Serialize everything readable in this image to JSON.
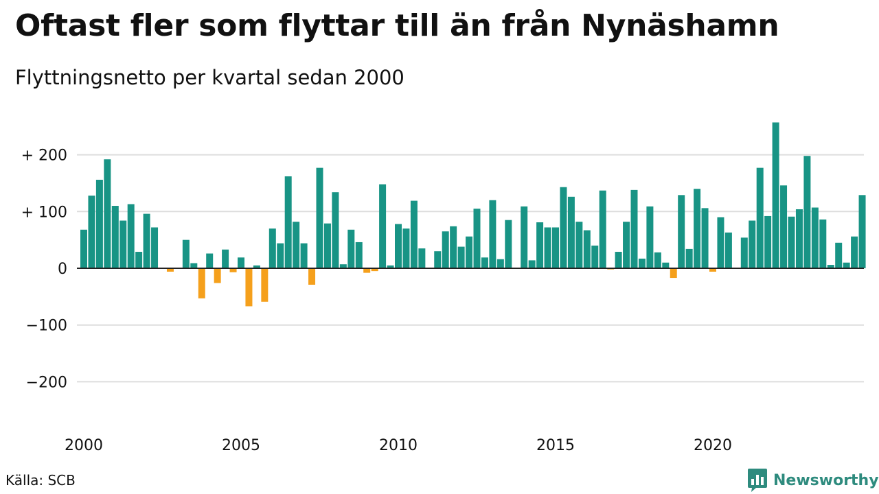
{
  "title": "Oftast fler som flyttar till än från Nynäshamn",
  "subtitle": "Flyttningsnetto per kvartal sedan 2000",
  "source": "Källa: SCB",
  "brand": {
    "label": "Newsworthy",
    "icon": "bar-chart-bubble-icon"
  },
  "colors": {
    "positive": "#189485",
    "negative": "#f5a01c",
    "grid": "#dddddd",
    "axis": "#222222",
    "brand": "#2e8b7e"
  },
  "chart_data": {
    "type": "bar",
    "title": "Oftast fler som flyttar till än från Nynäshamn",
    "subtitle": "Flyttningsnetto per kvartal sedan 2000",
    "xlabel": "",
    "ylabel": "",
    "start_year": 2000,
    "periods_per_year": 4,
    "x_tick_labels": [
      "2000",
      "2005",
      "2010",
      "2015",
      "2020"
    ],
    "y_ticks": [
      -200,
      -100,
      0,
      100,
      200
    ],
    "y_tick_labels": [
      "−200",
      "−100",
      "0",
      "+ 100",
      "+ 200"
    ],
    "ylim": [
      -265,
      265
    ],
    "grid": true,
    "series": [
      {
        "values": [
          68,
          128,
          156,
          192,
          110,
          84,
          113,
          29,
          96,
          72,
          0,
          -6,
          0,
          50,
          9,
          -53,
          26,
          -26,
          33,
          -7,
          19,
          -67,
          5,
          -59,
          70,
          44,
          162,
          82,
          44,
          -29,
          177,
          79,
          134,
          7,
          68,
          46,
          -8,
          -5,
          148,
          5,
          78,
          70,
          119,
          35,
          0,
          30,
          65,
          74,
          38,
          56,
          105,
          19,
          120,
          16,
          85,
          0,
          109,
          14,
          81,
          72,
          72,
          143,
          126,
          82,
          67,
          40,
          137,
          -2,
          29,
          82,
          138,
          17,
          109,
          28,
          10,
          -17,
          129,
          34,
          140,
          106,
          -6,
          90,
          63,
          0,
          54,
          84,
          177,
          92,
          257,
          146,
          91,
          104,
          198,
          107,
          86,
          6,
          45,
          10,
          56,
          129
        ]
      }
    ]
  }
}
